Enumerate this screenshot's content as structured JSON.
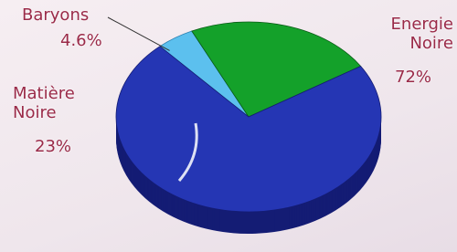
{
  "chart_data": {
    "type": "pie",
    "categories": [
      "Baryons",
      "Matière Noire",
      "Energie Noire"
    ],
    "values": [
      4.6,
      23,
      72
    ],
    "value_labels": [
      "4.6%",
      "23%",
      "72%"
    ],
    "colors": [
      "#5cc0ee",
      "#14a12a",
      "#2536b4"
    ],
    "side_colors": [
      "#2a7fb0",
      "#0a5a16",
      "#141c74"
    ]
  }
}
